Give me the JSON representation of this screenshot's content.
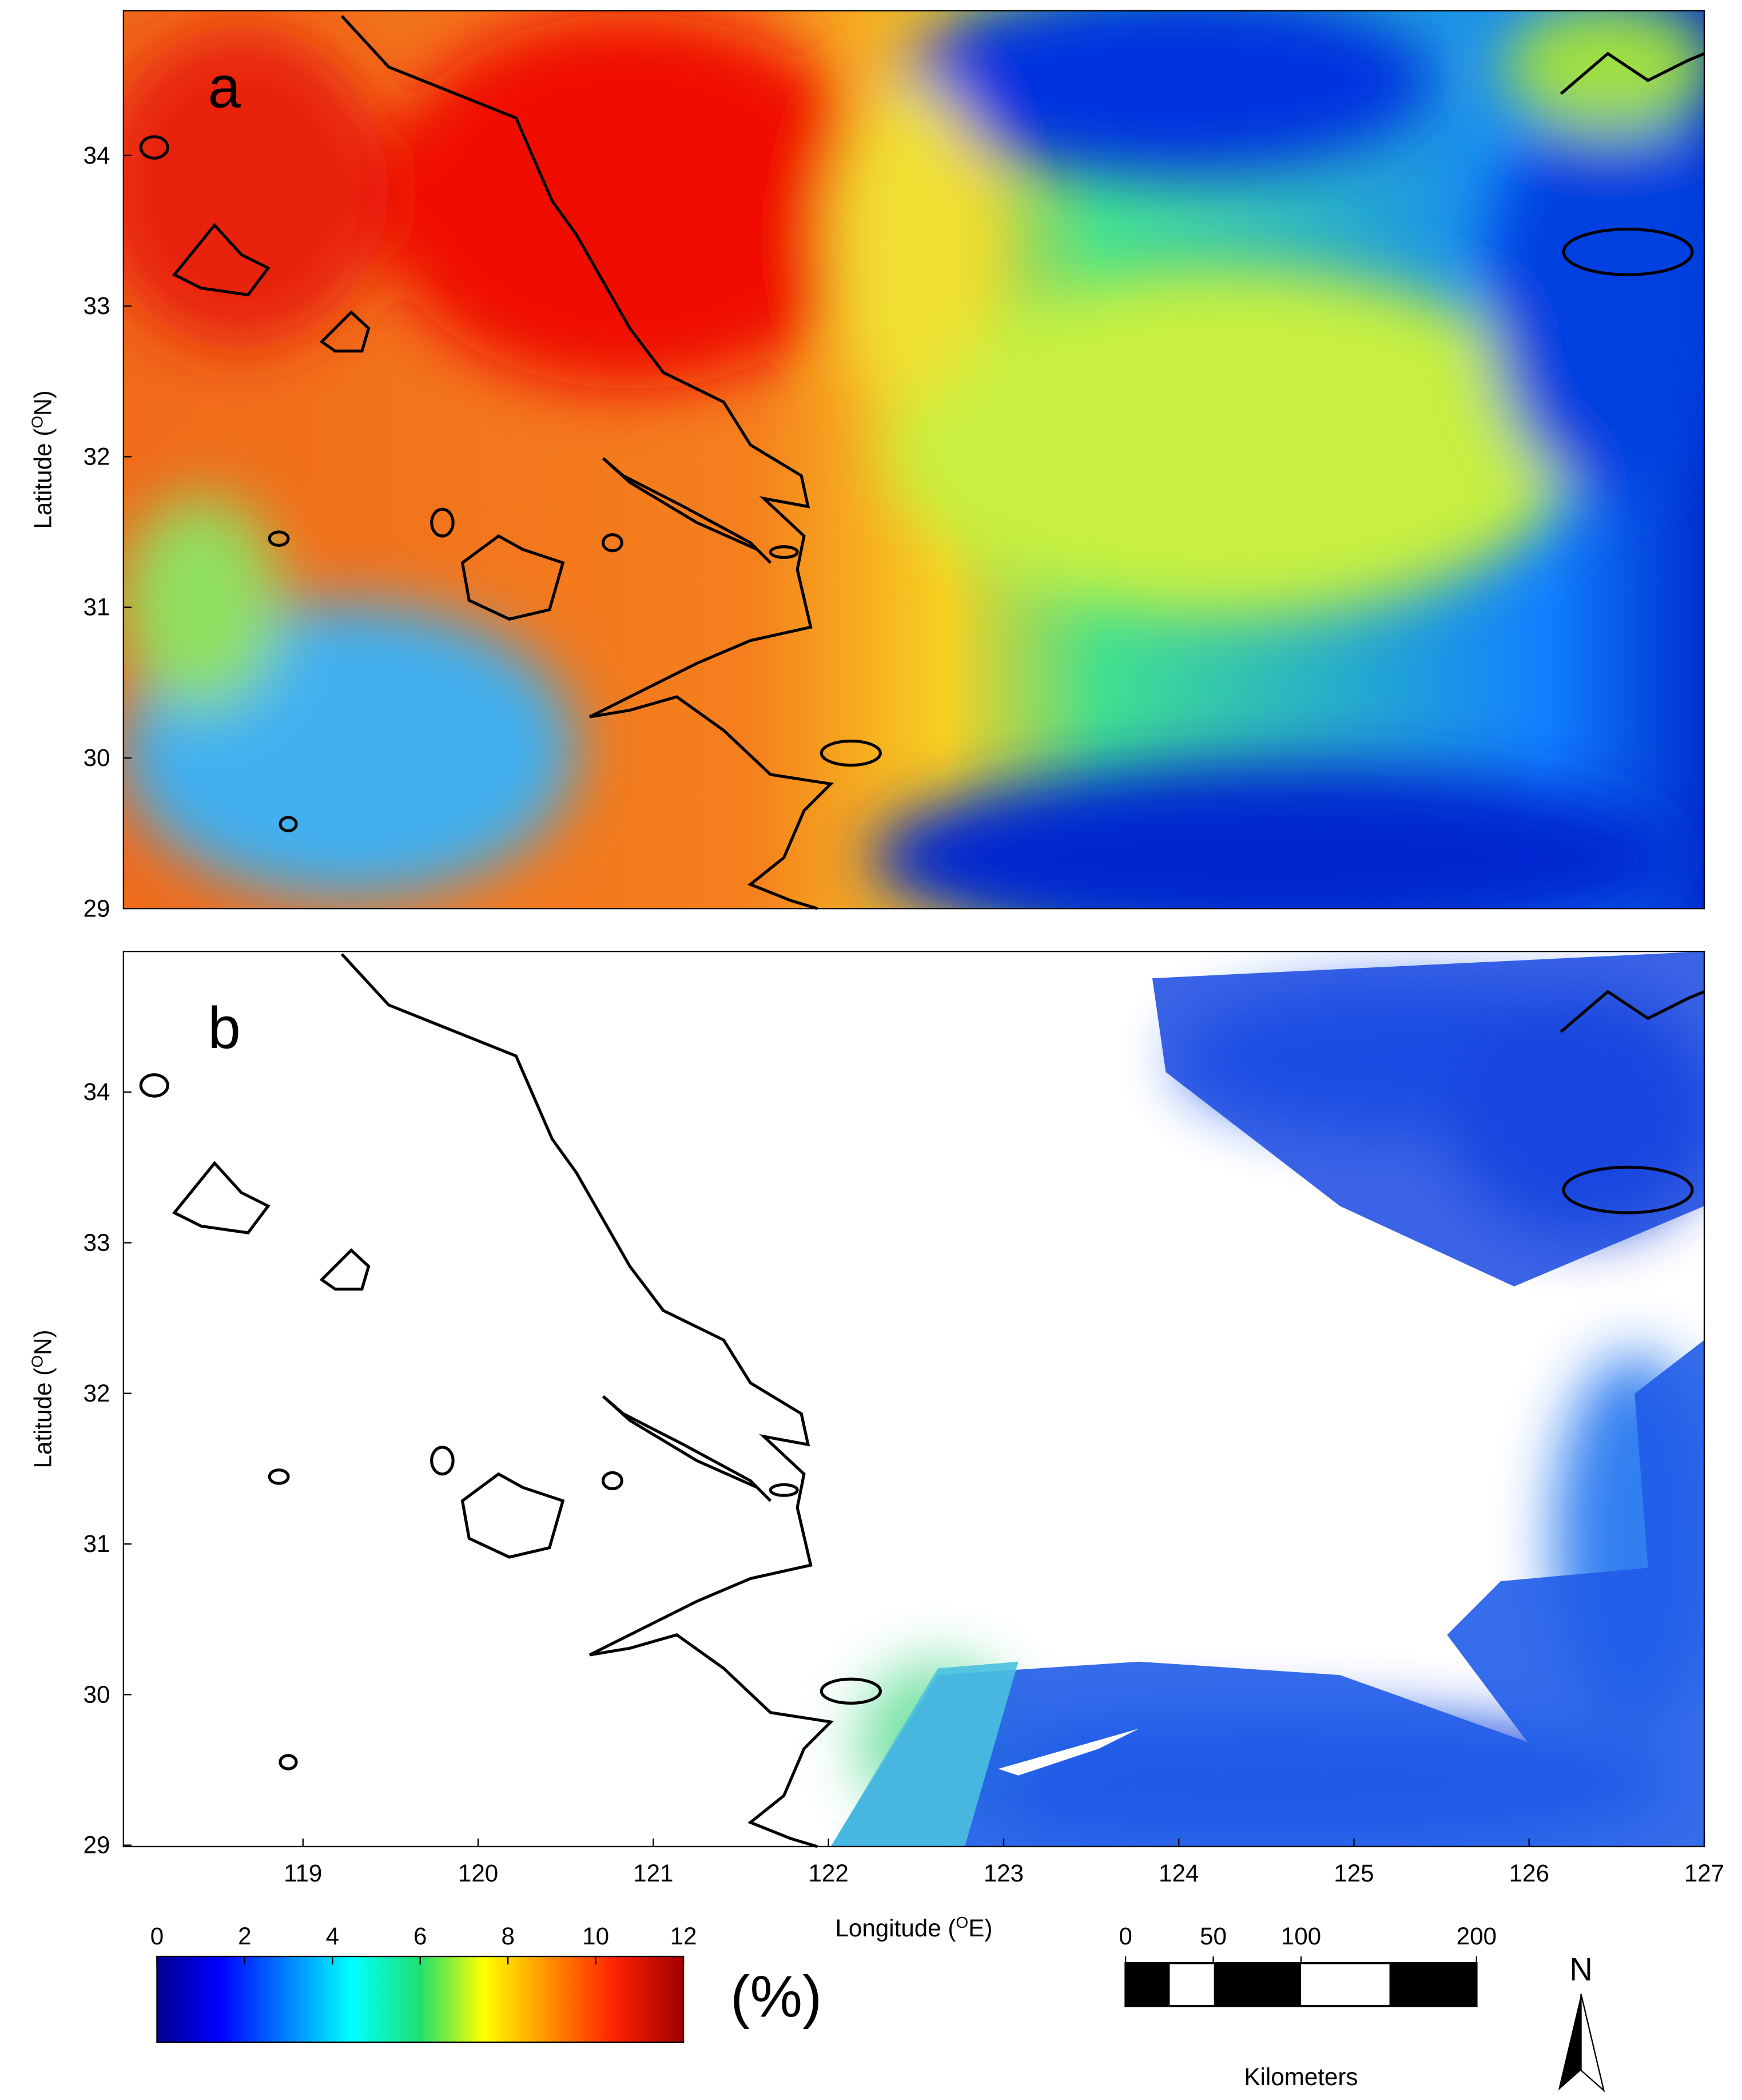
{
  "map": {
    "panels": [
      {
        "label": "a",
        "latitude_ticks": [
          29,
          30,
          31,
          32,
          33,
          34
        ]
      },
      {
        "label": "b",
        "latitude_ticks": [
          29,
          30,
          31,
          32,
          33,
          34
        ]
      }
    ],
    "y_axis_label": {
      "prefix": "Latitude (",
      "sup": "O",
      "suffix": "N)"
    },
    "x_axis_label": {
      "prefix": "Longitude (",
      "sup": "O",
      "suffix": "E)"
    },
    "longitude_ticks": [
      119,
      120,
      121,
      122,
      123,
      124,
      125,
      126,
      127
    ],
    "colorbar": {
      "ticks": [
        0,
        2,
        4,
        6,
        8,
        10,
        12
      ],
      "unit": "(%)"
    },
    "scale_bar": {
      "ticks": [
        0,
        50,
        100,
        200
      ],
      "unit": "Kilometers"
    },
    "north": "N"
  }
}
